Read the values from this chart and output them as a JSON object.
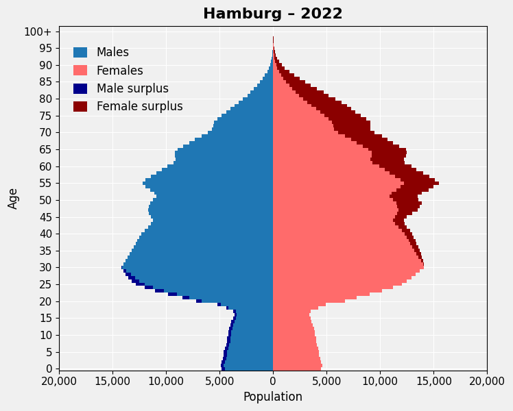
{
  "title": "Hamburg – 2022",
  "xlabel": "Population",
  "ylabel": "Age",
  "xlim": [
    -20000,
    20000
  ],
  "xticks": [
    -20000,
    -15000,
    -10000,
    -5000,
    0,
    5000,
    10000,
    15000,
    20000
  ],
  "xticklabels": [
    "20,000",
    "15,000",
    "10,000",
    "5,000",
    "0",
    "5,000",
    "10,000",
    "15,000",
    "20,000"
  ],
  "ages": [
    0,
    1,
    2,
    3,
    4,
    5,
    6,
    7,
    8,
    9,
    10,
    11,
    12,
    13,
    14,
    15,
    16,
    17,
    18,
    19,
    20,
    21,
    22,
    23,
    24,
    25,
    26,
    27,
    28,
    29,
    30,
    31,
    32,
    33,
    34,
    35,
    36,
    37,
    38,
    39,
    40,
    41,
    42,
    43,
    44,
    45,
    46,
    47,
    48,
    49,
    50,
    51,
    52,
    53,
    54,
    55,
    56,
    57,
    58,
    59,
    60,
    61,
    62,
    63,
    64,
    65,
    66,
    67,
    68,
    69,
    70,
    71,
    72,
    73,
    74,
    75,
    76,
    77,
    78,
    79,
    80,
    81,
    82,
    83,
    84,
    85,
    86,
    87,
    88,
    89,
    90,
    91,
    92,
    93,
    94,
    95,
    96,
    97,
    98,
    99,
    100
  ],
  "males": [
    4800,
    4900,
    4800,
    4700,
    4600,
    4600,
    4500,
    4400,
    4300,
    4300,
    4200,
    4200,
    4100,
    4000,
    3900,
    3700,
    3600,
    3700,
    4400,
    5200,
    7200,
    8500,
    9800,
    11000,
    12000,
    12800,
    13200,
    13500,
    13800,
    14000,
    14200,
    14000,
    13800,
    13600,
    13400,
    13200,
    13000,
    12800,
    12700,
    12500,
    12300,
    12000,
    11700,
    11400,
    11200,
    11400,
    11600,
    11700,
    11600,
    11500,
    11200,
    10900,
    11100,
    11500,
    11900,
    12200,
    11900,
    11400,
    10900,
    10400,
    9900,
    9300,
    9100,
    9200,
    9200,
    8900,
    8400,
    7800,
    7300,
    6700,
    6100,
    5700,
    5600,
    5500,
    5200,
    4800,
    4400,
    4000,
    3600,
    3200,
    2800,
    2400,
    2100,
    1800,
    1500,
    1200,
    950,
    750,
    550,
    400,
    280,
    190,
    130,
    85,
    58,
    38,
    24,
    15,
    8,
    4,
    2
  ],
  "females": [
    4500,
    4600,
    4500,
    4400,
    4300,
    4300,
    4200,
    4100,
    4000,
    4000,
    3900,
    3900,
    3800,
    3700,
    3600,
    3500,
    3400,
    3500,
    4200,
    4900,
    6700,
    7800,
    9000,
    10200,
    11200,
    12000,
    12500,
    12900,
    13300,
    13700,
    14100,
    14100,
    14000,
    13900,
    13800,
    13700,
    13600,
    13400,
    13300,
    13100,
    13000,
    12800,
    12500,
    12300,
    12200,
    12500,
    13000,
    13500,
    13700,
    13900,
    13600,
    13500,
    13900,
    14500,
    15000,
    15500,
    15100,
    14600,
    14000,
    13400,
    12900,
    12300,
    12200,
    12400,
    12500,
    12400,
    11800,
    11200,
    10700,
    10200,
    9500,
    9100,
    9100,
    9100,
    8700,
    8200,
    7700,
    7300,
    6900,
    6400,
    5800,
    5200,
    4700,
    4100,
    3500,
    3000,
    2500,
    2000,
    1500,
    1100,
    820,
    560,
    390,
    270,
    180,
    120,
    78,
    48,
    30,
    14,
    8
  ],
  "male_color": "#1f77b4",
  "female_color": "#ff6b6b",
  "male_surplus_color": "#00008b",
  "female_surplus_color": "#8b0000",
  "background_color": "#f0f0f0",
  "grid_color": "#ffffff",
  "title_fontsize": 16,
  "label_fontsize": 12,
  "tick_fontsize": 11
}
